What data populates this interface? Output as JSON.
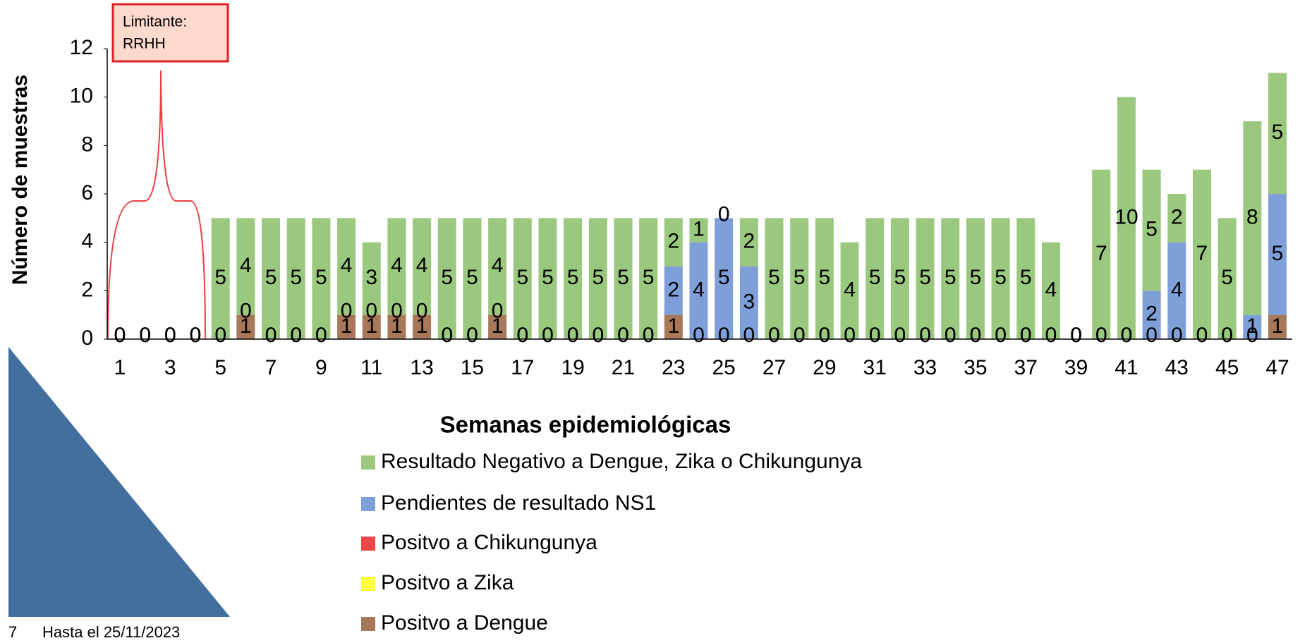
{
  "chart_data": {
    "type": "stacked_bar",
    "annotation": [
      "Limitante:",
      "RRHH"
    ],
    "ylabel": "Número de muestras",
    "xlabel": "Semanas epidemiológicas",
    "footer": [
      "7",
      "Hasta el 25/11/2023"
    ],
    "categories": [
      1,
      null,
      3,
      null,
      5,
      null,
      7,
      null,
      9,
      null,
      11,
      null,
      13,
      null,
      15,
      null,
      17,
      null,
      19,
      null,
      21,
      null,
      23,
      null,
      25,
      null,
      27,
      null,
      29,
      null,
      31,
      null,
      33,
      null,
      35,
      null,
      37,
      null,
      39,
      null,
      41,
      null,
      43,
      null,
      45,
      null,
      47
    ],
    "ylim": [
      0,
      12
    ],
    "yticks": [
      0,
      2,
      4,
      6,
      8,
      10,
      12
    ],
    "series": [
      {
        "name": "Positvo a Dengue",
        "color": "#a8785a",
        "data_labels": true,
        "values": [
          0,
          0,
          0,
          0,
          0,
          1,
          0,
          0,
          0,
          1,
          1,
          1,
          1,
          0,
          0,
          1,
          0,
          0,
          0,
          0,
          0,
          0,
          1,
          0,
          0,
          0,
          0,
          0,
          0,
          0,
          0,
          0,
          0,
          0,
          0,
          0,
          0,
          0,
          0,
          0,
          0,
          0,
          0,
          0,
          0,
          0,
          1
        ]
      },
      {
        "name": "Positvo a  Zika",
        "color": "#ffff40",
        "data_labels": false,
        "values": [
          0,
          0,
          0,
          0,
          0,
          0,
          0,
          0,
          0,
          0,
          0,
          0,
          0,
          0,
          0,
          0,
          0,
          0,
          0,
          0,
          0,
          0,
          0,
          0,
          0,
          0,
          0,
          0,
          0,
          0,
          0,
          0,
          0,
          0,
          0,
          0,
          0,
          0,
          0,
          0,
          0,
          0,
          0,
          0,
          0,
          0,
          0
        ]
      },
      {
        "name": "Positvo a Chikungunya",
        "color": "#f04848",
        "data_labels": false,
        "values": [
          0,
          0,
          0,
          0,
          0,
          0,
          0,
          0,
          0,
          0,
          0,
          0,
          0,
          0,
          0,
          0,
          0,
          0,
          0,
          0,
          0,
          0,
          0,
          0,
          0,
          0,
          0,
          0,
          0,
          0,
          0,
          0,
          0,
          0,
          0,
          0,
          0,
          0,
          0,
          0,
          0,
          0,
          0,
          0,
          0,
          0,
          0
        ]
      },
      {
        "name": "Pendientes de resultado NS1",
        "color": "#7f9fd8",
        "data_labels": true,
        "values": [
          0,
          0,
          0,
          0,
          0,
          0,
          0,
          0,
          0,
          0,
          0,
          0,
          0,
          0,
          0,
          0,
          0,
          0,
          0,
          0,
          0,
          0,
          2,
          4,
          5,
          3,
          0,
          0,
          0,
          0,
          0,
          0,
          0,
          0,
          0,
          0,
          0,
          0,
          0,
          0,
          0,
          2,
          4,
          0,
          0,
          1,
          5
        ]
      },
      {
        "name": "Resultado Negativo a Dengue, Zika o Chikungunya",
        "color": "#9bc87f",
        "data_labels": true,
        "values": [
          0,
          0,
          0,
          0,
          5,
          4,
          5,
          5,
          5,
          4,
          3,
          4,
          4,
          5,
          5,
          4,
          5,
          5,
          5,
          5,
          5,
          5,
          2,
          1,
          0,
          2,
          5,
          5,
          5,
          4,
          5,
          5,
          5,
          5,
          5,
          5,
          5,
          4,
          0,
          7,
          10,
          5,
          2,
          7,
          5,
          8,
          5
        ]
      }
    ]
  }
}
